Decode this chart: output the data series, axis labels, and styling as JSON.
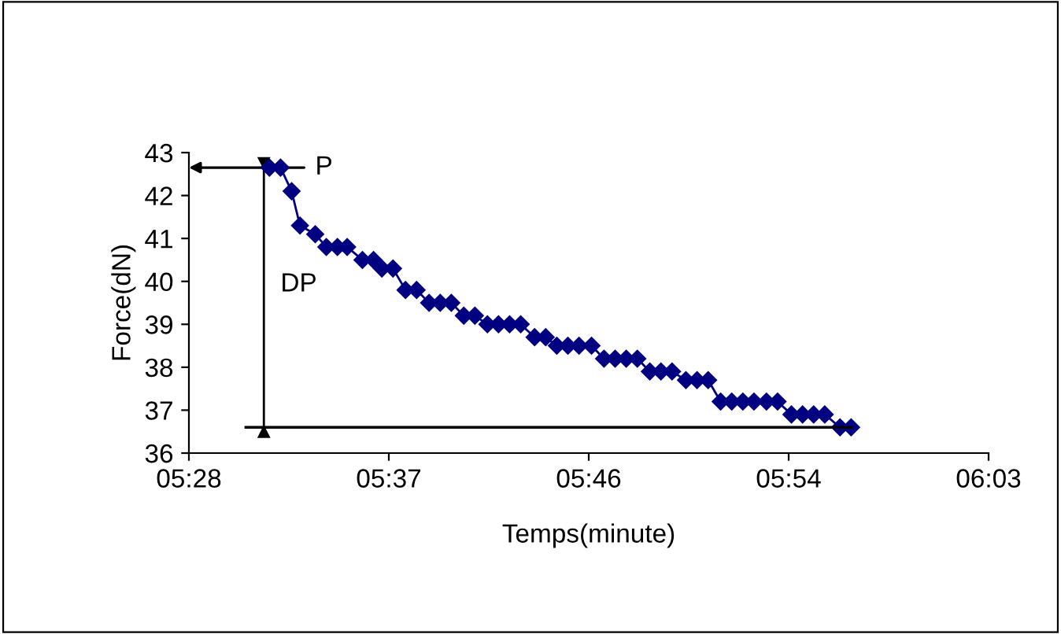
{
  "chart_data": {
    "type": "line",
    "xlabel": "Temps(minute)",
    "ylabel": "Force(dN)",
    "xlim": [
      5.472,
      6.048
    ],
    "xticks": [
      {
        "value": 5.472,
        "label": "05:28"
      },
      {
        "value": 5.616,
        "label": "05:37"
      },
      {
        "value": 5.76,
        "label": "05:46"
      },
      {
        "value": 5.904,
        "label": "05:54"
      },
      {
        "value": 6.048,
        "label": "06:03"
      }
    ],
    "ylim": [
      36,
      43
    ],
    "yticks": [
      36,
      37,
      38,
      39,
      40,
      41,
      42,
      43
    ],
    "grid": false,
    "legend": false,
    "marker": "diamond",
    "line_style": "solid",
    "annotations": [
      {
        "text": "P",
        "x": 5.53,
        "y": 42.65
      },
      "DP"
    ],
    "ref_lines": [
      {
        "axis": "y",
        "value": 36.6,
        "color": "#000000"
      }
    ],
    "series": [
      {
        "type": "line",
        "color": "#000000",
        "marker": "none",
        "x": [
          5.526,
          5.526
        ],
        "values": [
          42.65,
          36.6
        ]
      },
      {
        "color": "#000080",
        "x": [
          5.53,
          5.538,
          5.546,
          5.552,
          5.563,
          5.571,
          5.579,
          5.586,
          5.597,
          5.605,
          5.611,
          5.619,
          5.628,
          5.636,
          5.645,
          5.653,
          5.661,
          5.67,
          5.678,
          5.687,
          5.695,
          5.703,
          5.711,
          5.721,
          5.729,
          5.737,
          5.745,
          5.753,
          5.762,
          5.771,
          5.779,
          5.787,
          5.795,
          5.804,
          5.812,
          5.82,
          5.83,
          5.838,
          5.846,
          5.855,
          5.863,
          5.871,
          5.879,
          5.888,
          5.896,
          5.906,
          5.914,
          5.922,
          5.93,
          5.941,
          5.949
        ],
        "values": [
          42.65,
          42.65,
          42.1,
          41.3,
          41.1,
          40.8,
          40.8,
          40.8,
          40.5,
          40.5,
          40.3,
          40.3,
          39.8,
          39.8,
          39.5,
          39.5,
          39.5,
          39.2,
          39.2,
          39.0,
          39.0,
          39.0,
          39.0,
          38.7,
          38.7,
          38.5,
          38.5,
          38.5,
          38.5,
          38.2,
          38.2,
          38.2,
          38.2,
          37.9,
          37.9,
          37.9,
          37.7,
          37.7,
          37.7,
          37.2,
          37.2,
          37.2,
          37.2,
          37.2,
          37.2,
          36.9,
          36.9,
          36.9,
          36.9,
          36.6,
          36.6
        ]
      }
    ]
  }
}
